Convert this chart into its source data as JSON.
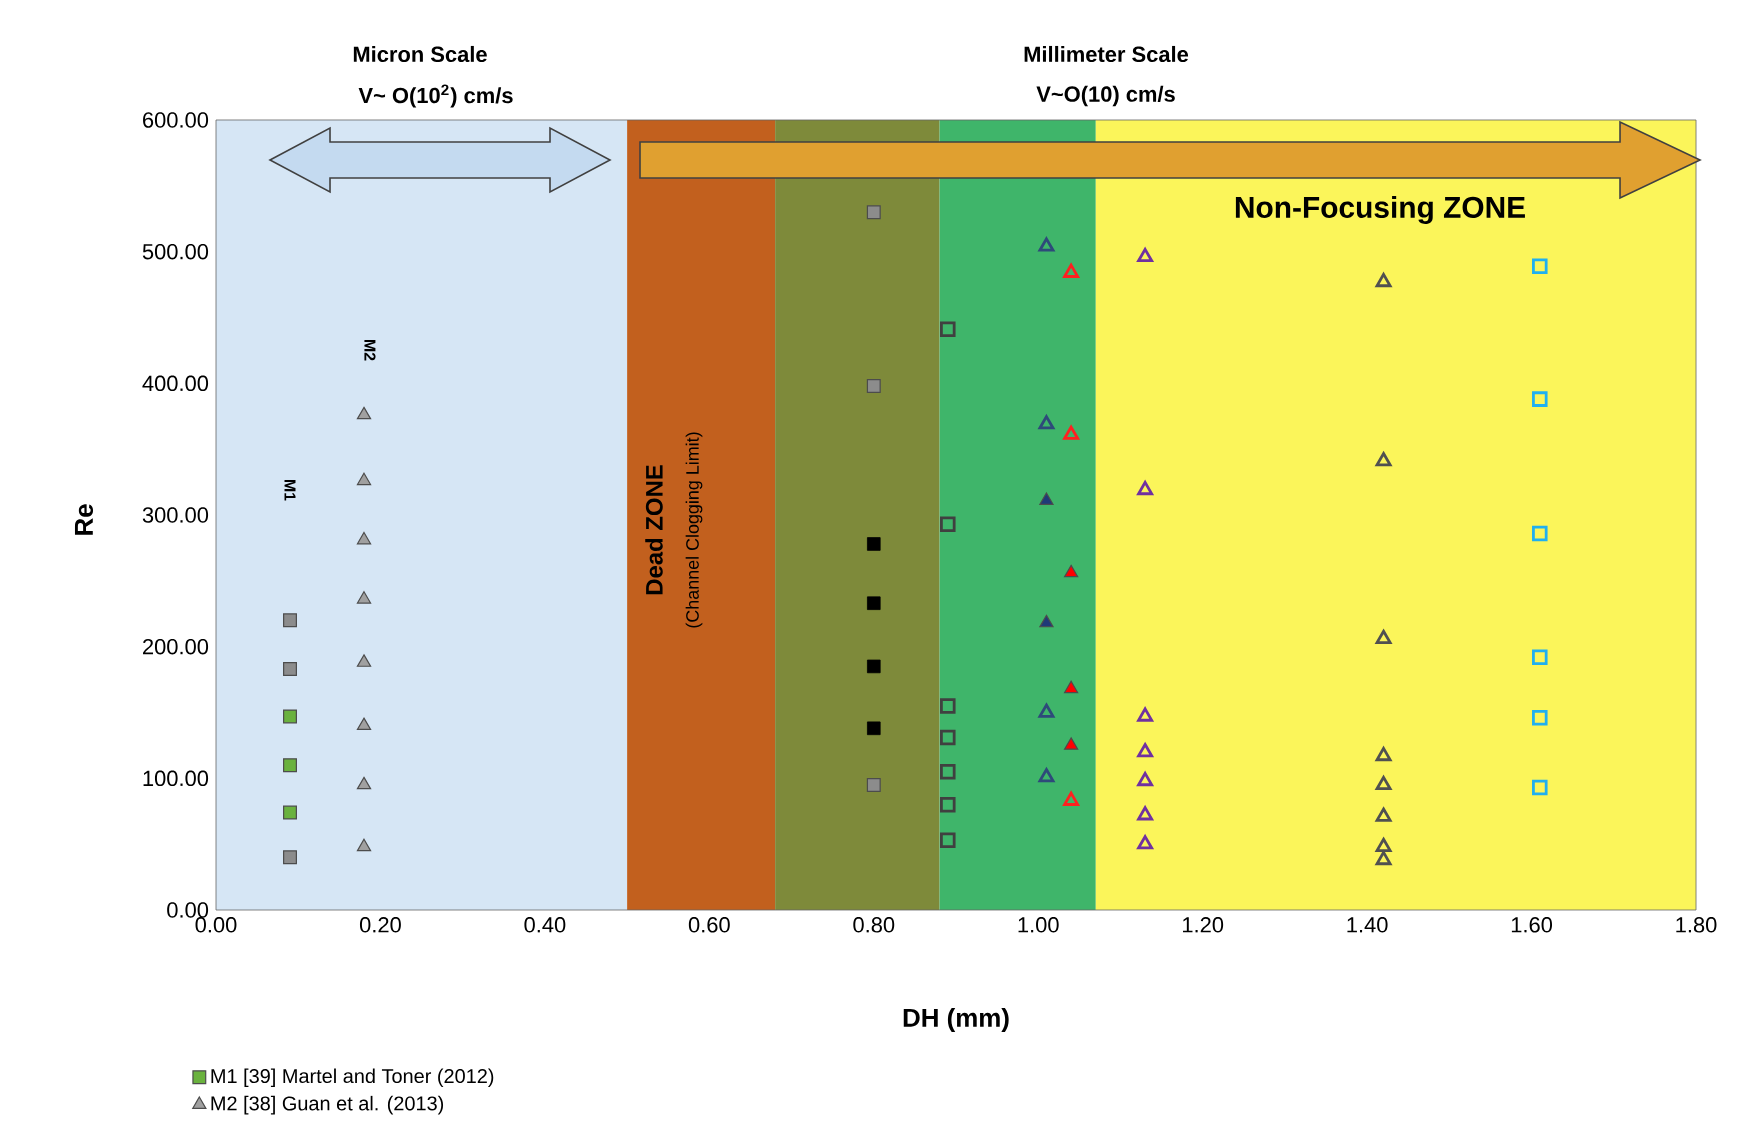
{
  "chart_data": {
    "type": "scatter",
    "xlabel": "DH (mm)",
    "ylabel": "Re",
    "xlim": [
      0,
      1.8
    ],
    "ylim": [
      0,
      600
    ],
    "xticks": [
      {
        "value": 0,
        "label": "0.00"
      },
      {
        "value": 0.2,
        "label": "0.20"
      },
      {
        "value": 0.4,
        "label": "0.40"
      },
      {
        "value": 0.6,
        "label": "0.60"
      },
      {
        "value": 0.8,
        "label": "0.80"
      },
      {
        "value": 1.0,
        "label": "1.00"
      },
      {
        "value": 1.2,
        "label": "1.20"
      },
      {
        "value": 1.4,
        "label": "1.40"
      },
      {
        "value": 1.6,
        "label": "1.60"
      },
      {
        "value": 1.8,
        "label": "1.80"
      }
    ],
    "yticks": [
      {
        "value": 0,
        "label": "0.00"
      },
      {
        "value": 100,
        "label": "100.00"
      },
      {
        "value": 200,
        "label": "200.00"
      },
      {
        "value": 300,
        "label": "300.00"
      },
      {
        "value": 400,
        "label": "400.00"
      },
      {
        "value": 500,
        "label": "500.00"
      },
      {
        "value": 600,
        "label": "600.00"
      }
    ],
    "grid": false,
    "legend": "bottom left",
    "series": [
      {
        "name": "M1 [39] Martel and Toner (2012)",
        "color": "#6ab23e",
        "marker": "square",
        "x": [
          0.09,
          0.09,
          0.09
        ],
        "values": [
          147,
          110,
          74
        ]
      },
      {
        "color": "#8c8c8c",
        "marker": "square",
        "x": [
          0.09,
          0.09,
          0.09
        ],
        "values": [
          220,
          183,
          40
        ]
      },
      {
        "name": "M2 [38] Guan et al. (2013)",
        "color": "#a0a0a0",
        "marker": "triangle",
        "x": [
          0.18,
          0.18,
          0.18,
          0.18,
          0.18,
          0.18,
          0.18,
          0.18
        ],
        "values": [
          376,
          326,
          281,
          236,
          188,
          140,
          95,
          48
        ]
      },
      {
        "color": "#8c8c8c",
        "marker": "square",
        "x": [
          0.8,
          0.8,
          0.8
        ],
        "values": [
          530,
          398,
          95
        ]
      },
      {
        "color": "#000000",
        "marker": "square",
        "x": [
          0.8,
          0.8,
          0.8,
          0.8
        ],
        "values": [
          278,
          233,
          185,
          138
        ]
      },
      {
        "color": "#404040",
        "marker": "square-open",
        "x": [
          0.89,
          0.89,
          0.89,
          0.89,
          0.89,
          0.89,
          0.89
        ],
        "values": [
          441,
          293,
          155,
          131,
          105,
          80,
          53
        ]
      },
      {
        "color": "#2e4a7a",
        "marker": "triangle-open",
        "x": [
          1.01,
          1.01,
          1.01,
          1.01
        ],
        "values": [
          504,
          369,
          150,
          101
        ]
      },
      {
        "color": "#1f3a78",
        "marker": "triangle",
        "x": [
          1.01,
          1.01
        ],
        "values": [
          311,
          218
        ]
      },
      {
        "color": "#ff2020",
        "marker": "triangle-open",
        "x": [
          1.04,
          1.04,
          1.04
        ],
        "values": [
          484,
          361,
          83
        ]
      },
      {
        "color": "#ff0000",
        "marker": "triangle",
        "x": [
          1.04,
          1.04,
          1.04
        ],
        "values": [
          256,
          168,
          125
        ]
      },
      {
        "color": "#7030a0",
        "marker": "triangle-open",
        "x": [
          1.13,
          1.13,
          1.13,
          1.13,
          1.13,
          1.13,
          1.13
        ],
        "values": [
          496,
          319,
          147,
          120,
          98,
          72,
          50
        ]
      },
      {
        "color": "#505050",
        "marker": "triangle-open",
        "x": [
          1.42,
          1.42,
          1.42,
          1.42,
          1.42,
          1.42,
          1.42,
          1.42
        ],
        "values": [
          477,
          341,
          206,
          117,
          95,
          71,
          48,
          38
        ]
      },
      {
        "color": "#20b0f0",
        "marker": "square-open",
        "x": [
          1.61,
          1.61,
          1.61,
          1.61,
          1.61,
          1.61
        ],
        "values": [
          489,
          388,
          286,
          192,
          146,
          93
        ]
      }
    ],
    "bands": [
      {
        "axis": "x",
        "from": 0,
        "to": 0.5,
        "color": "#d6e6f5"
      },
      {
        "axis": "x",
        "from": 0.5,
        "to": 0.68,
        "color": "#c2601e"
      },
      {
        "axis": "x",
        "from": 0.68,
        "to": 0.88,
        "color": "#7e8a3a"
      },
      {
        "axis": "x",
        "from": 0.88,
        "to": 1.07,
        "color": "#3fb56a"
      },
      {
        "axis": "x",
        "from": 1.07,
        "to": 1.8,
        "color": "#fbf55a"
      }
    ],
    "annotations": [
      "Micron Scale",
      "V~ O(10$^{2}$) cm/s",
      "Millimeter Scale",
      "V~O(10) cm/s",
      "Non-Focusing ZONE",
      "Dead ZONE",
      "(Channel Clogging Limit)",
      "M1",
      "M2"
    ]
  }
}
